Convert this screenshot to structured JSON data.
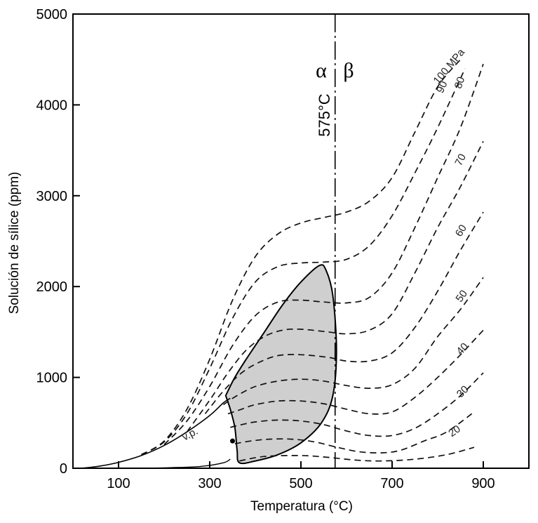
{
  "chart_data": {
    "type": "line",
    "xlabel": "Temperatura (°C)",
    "ylabel": "Solución de sílice (ppm)",
    "xlim": [
      0,
      1000
    ],
    "ylim": [
      0,
      5000
    ],
    "x_ticks": [
      100,
      300,
      500,
      700,
      900
    ],
    "y_ticks": [
      0,
      1000,
      2000,
      3000,
      4000,
      5000
    ],
    "grid": false,
    "phase_transition": {
      "x": 575,
      "temperature_label": "575°C",
      "left_label": "α",
      "right_label": "β"
    },
    "vapor_pressure_label": "v.p.",
    "shaded_region": [
      [
        335,
        800
      ],
      [
        355,
        1000
      ],
      [
        380,
        1200
      ],
      [
        420,
        1500
      ],
      [
        460,
        1800
      ],
      [
        500,
        2050
      ],
      [
        540,
        2230
      ],
      [
        555,
        2180
      ],
      [
        570,
        1900
      ],
      [
        578,
        1300
      ],
      [
        570,
        800
      ],
      [
        545,
        500
      ],
      [
        500,
        280
      ],
      [
        450,
        150
      ],
      [
        400,
        80
      ],
      [
        365,
        60
      ],
      [
        360,
        200
      ],
      [
        355,
        450
      ],
      [
        345,
        650
      ],
      [
        335,
        800
      ]
    ],
    "vapor_pressure_curve": [
      [
        20,
        0
      ],
      [
        60,
        25
      ],
      [
        100,
        65
      ],
      [
        150,
        140
      ],
      [
        200,
        250
      ],
      [
        250,
        400
      ],
      [
        300,
        580
      ],
      [
        330,
        720
      ],
      [
        345,
        770
      ]
    ],
    "lower_boundary_curve": [
      [
        100,
        0
      ],
      [
        200,
        5
      ],
      [
        280,
        20
      ],
      [
        330,
        60
      ],
      [
        345,
        100
      ]
    ],
    "series": [
      {
        "name": "100 MPa",
        "values": [
          [
            150,
            150
          ],
          [
            200,
            300
          ],
          [
            250,
            650
          ],
          [
            300,
            1200
          ],
          [
            350,
            1850
          ],
          [
            400,
            2330
          ],
          [
            450,
            2580
          ],
          [
            500,
            2700
          ],
          [
            550,
            2760
          ],
          [
            600,
            2820
          ],
          [
            650,
            2940
          ],
          [
            700,
            3200
          ],
          [
            750,
            3700
          ],
          [
            800,
            4200
          ],
          [
            850,
            4500
          ]
        ]
      },
      {
        "name": "90",
        "values": [
          [
            150,
            150
          ],
          [
            200,
            290
          ],
          [
            250,
            600
          ],
          [
            300,
            1100
          ],
          [
            350,
            1650
          ],
          [
            400,
            2050
          ],
          [
            450,
            2220
          ],
          [
            500,
            2260
          ],
          [
            550,
            2270
          ],
          [
            600,
            2300
          ],
          [
            650,
            2450
          ],
          [
            700,
            2780
          ],
          [
            750,
            3250
          ],
          [
            800,
            3750
          ],
          [
            860,
            4400
          ]
        ]
      },
      {
        "name": "80",
        "values": [
          [
            200,
            260
          ],
          [
            250,
            520
          ],
          [
            300,
            900
          ],
          [
            350,
            1350
          ],
          [
            400,
            1680
          ],
          [
            450,
            1830
          ],
          [
            500,
            1850
          ],
          [
            550,
            1830
          ],
          [
            600,
            1820
          ],
          [
            650,
            1880
          ],
          [
            700,
            2150
          ],
          [
            750,
            2650
          ],
          [
            800,
            3200
          ],
          [
            850,
            3750
          ],
          [
            900,
            4450
          ]
        ]
      },
      {
        "name": "70",
        "values": [
          [
            250,
            400
          ],
          [
            300,
            750
          ],
          [
            340,
            1050
          ],
          [
            380,
            1300
          ],
          [
            420,
            1450
          ],
          [
            460,
            1520
          ],
          [
            500,
            1530
          ],
          [
            560,
            1500
          ],
          [
            600,
            1480
          ],
          [
            650,
            1520
          ],
          [
            700,
            1700
          ],
          [
            750,
            2150
          ],
          [
            800,
            2650
          ],
          [
            850,
            3100
          ],
          [
            900,
            3600
          ]
        ]
      },
      {
        "name": "60",
        "values": [
          [
            290,
            600
          ],
          [
            330,
            850
          ],
          [
            370,
            1050
          ],
          [
            410,
            1170
          ],
          [
            450,
            1240
          ],
          [
            500,
            1250
          ],
          [
            560,
            1220
          ],
          [
            600,
            1180
          ],
          [
            650,
            1180
          ],
          [
            700,
            1270
          ],
          [
            750,
            1550
          ],
          [
            800,
            1950
          ],
          [
            850,
            2400
          ],
          [
            900,
            2820
          ]
        ]
      },
      {
        "name": "50",
        "values": [
          [
            330,
            700
          ],
          [
            360,
            800
          ],
          [
            400,
            900
          ],
          [
            450,
            960
          ],
          [
            500,
            980
          ],
          [
            550,
            960
          ],
          [
            600,
            910
          ],
          [
            650,
            880
          ],
          [
            700,
            920
          ],
          [
            750,
            1100
          ],
          [
            800,
            1450
          ],
          [
            850,
            1750
          ],
          [
            900,
            2100
          ]
        ]
      },
      {
        "name": "40",
        "values": [
          [
            340,
            600
          ],
          [
            370,
            650
          ],
          [
            400,
            700
          ],
          [
            450,
            740
          ],
          [
            500,
            740
          ],
          [
            550,
            710
          ],
          [
            600,
            650
          ],
          [
            650,
            600
          ],
          [
            700,
            620
          ],
          [
            750,
            780
          ],
          [
            800,
            1000
          ],
          [
            850,
            1250
          ],
          [
            900,
            1520
          ]
        ]
      },
      {
        "name": "30",
        "values": [
          [
            345,
            450
          ],
          [
            370,
            480
          ],
          [
            400,
            510
          ],
          [
            450,
            530
          ],
          [
            500,
            520
          ],
          [
            550,
            480
          ],
          [
            600,
            410
          ],
          [
            650,
            360
          ],
          [
            700,
            360
          ],
          [
            750,
            440
          ],
          [
            800,
            600
          ],
          [
            850,
            800
          ],
          [
            900,
            1050
          ]
        ]
      },
      {
        "name": "20",
        "values": [
          [
            355,
            270
          ],
          [
            390,
            300
          ],
          [
            430,
            320
          ],
          [
            480,
            320
          ],
          [
            530,
            290
          ],
          [
            580,
            230
          ],
          [
            630,
            180
          ],
          [
            680,
            170
          ],
          [
            720,
            200
          ],
          [
            770,
            300
          ],
          [
            820,
            400
          ],
          [
            880,
            620
          ]
        ]
      },
      {
        "name": "",
        "values": [
          [
            365,
            80
          ],
          [
            420,
            130
          ],
          [
            500,
            140
          ],
          [
            560,
            120
          ],
          [
            620,
            90
          ],
          [
            680,
            80
          ],
          [
            750,
            100
          ],
          [
            820,
            150
          ],
          [
            880,
            230
          ]
        ]
      }
    ]
  }
}
